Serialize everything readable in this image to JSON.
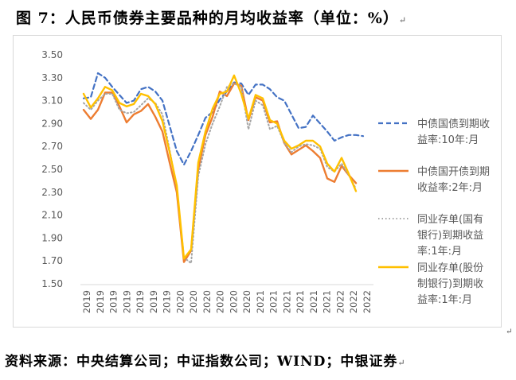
{
  "page": {
    "title": "图 7：人民币债券主要品种的月均收益率（单位：%）",
    "source": "资料来源：中央结算公司；中证指数公司；WIND；中银证券"
  },
  "chart_data": {
    "type": "line",
    "title": "",
    "xlabel": "",
    "ylabel": "",
    "ylim": [
      1.5,
      3.5
    ],
    "yticks": [
      1.5,
      1.7,
      1.9,
      2.1,
      2.3,
      2.5,
      2.7,
      2.9,
      3.1,
      3.3,
      3.5
    ],
    "ytick_labels": [
      "1.50",
      "1.70",
      "1.90",
      "2.10",
      "2.30",
      "2.50",
      "2.70",
      "2.90",
      "3.10",
      "3.30",
      "3.50"
    ],
    "x": [
      "2019-01",
      "2019-02",
      "2019-03",
      "2019-04",
      "2019-05",
      "2019-06",
      "2019-07",
      "2019-08",
      "2019-09",
      "2019-10",
      "2019-11",
      "2019-12",
      "2020-01",
      "2020-02",
      "2020-03",
      "2020-04",
      "2020-05",
      "2020-06",
      "2020-07",
      "2020-08",
      "2020-09",
      "2020-10",
      "2020-11",
      "2020-12",
      "2021-01",
      "2021-02",
      "2021-03",
      "2021-04",
      "2021-05",
      "2021-06",
      "2021-07",
      "2021-08",
      "2021-09",
      "2021-10",
      "2021-11",
      "2021-12",
      "2022-01",
      "2022-02",
      "2022-03",
      "2022-04",
      "2022-05"
    ],
    "x_tick_labels": [
      "2019",
      "2019",
      "2019",
      "2019",
      "2019",
      "2019",
      "2019",
      "2020",
      "2020",
      "2020",
      "2020",
      "2020",
      "2020",
      "2021",
      "2021",
      "2021",
      "2021",
      "2021",
      "2021",
      "2022",
      "2022",
      "2022"
    ],
    "grid": false,
    "legend_position": "right",
    "series": [
      {
        "name": "中债国债到期收益率:10年:月",
        "legend_lines": [
          "中债国债到期收",
          "益率:10年:月"
        ],
        "color": "#4472c4",
        "dash": "dashed",
        "values": [
          3.12,
          3.13,
          3.34,
          3.3,
          3.22,
          3.15,
          3.08,
          3.1,
          3.2,
          3.22,
          3.18,
          3.1,
          2.88,
          2.66,
          2.54,
          2.66,
          2.8,
          2.95,
          3.0,
          3.11,
          3.18,
          3.26,
          3.25,
          3.15,
          3.24,
          3.24,
          3.2,
          3.13,
          3.1,
          2.98,
          2.86,
          2.87,
          2.97,
          2.9,
          2.83,
          2.75,
          2.78,
          2.8,
          2.8,
          2.79,
          null
        ]
      },
      {
        "name": "中债国开债到期收益率:2年:月",
        "legend_lines": [
          "中债国开债到期",
          "收益率:2年:月"
        ],
        "color": "#ed7d31",
        "dash": "solid",
        "values": [
          3.02,
          2.94,
          3.02,
          3.17,
          3.17,
          3.05,
          2.91,
          2.98,
          3.01,
          3.07,
          2.96,
          2.83,
          2.56,
          2.3,
          1.69,
          1.79,
          2.5,
          2.8,
          2.96,
          3.18,
          3.14,
          3.25,
          3.23,
          2.93,
          3.13,
          3.1,
          2.91,
          2.92,
          2.73,
          2.63,
          2.67,
          2.71,
          2.66,
          2.6,
          2.42,
          2.39,
          2.53,
          2.45,
          2.38,
          null,
          null
        ]
      },
      {
        "name": "同业存单(国有银行)到期收益率:1年:月",
        "legend_lines": [
          "同业存单(国有",
          "银行)到期收益",
          "率:1年:月"
        ],
        "color": "#a5a5a5",
        "dash": "dotted",
        "values": [
          3.08,
          3.02,
          3.1,
          3.16,
          3.16,
          3.02,
          2.99,
          3.0,
          3.06,
          3.12,
          3.08,
          2.98,
          2.67,
          2.34,
          1.73,
          1.68,
          2.44,
          2.72,
          2.9,
          3.05,
          3.22,
          3.25,
          3.22,
          2.85,
          3.1,
          3.06,
          2.85,
          2.88,
          2.73,
          2.65,
          2.7,
          2.72,
          2.71,
          2.68,
          2.52,
          2.48,
          2.55,
          2.45,
          2.33,
          null,
          null
        ]
      },
      {
        "name": "同业存单(股份制银行)到期收益率:1年:月",
        "legend_lines": [
          "同业存单(股份",
          "制银行)到期收",
          "益率:1年:月"
        ],
        "color": "#ffc000",
        "dash": "solid",
        "values": [
          3.16,
          3.04,
          3.12,
          3.22,
          3.19,
          3.08,
          3.05,
          3.07,
          3.16,
          3.14,
          3.07,
          2.92,
          2.65,
          2.36,
          1.72,
          1.8,
          2.56,
          2.83,
          3.03,
          3.16,
          3.18,
          3.32,
          3.16,
          2.94,
          3.15,
          3.12,
          2.93,
          2.9,
          2.75,
          2.68,
          2.71,
          2.75,
          2.75,
          2.7,
          2.55,
          2.48,
          2.6,
          2.46,
          2.31,
          null,
          null
        ]
      }
    ]
  }
}
